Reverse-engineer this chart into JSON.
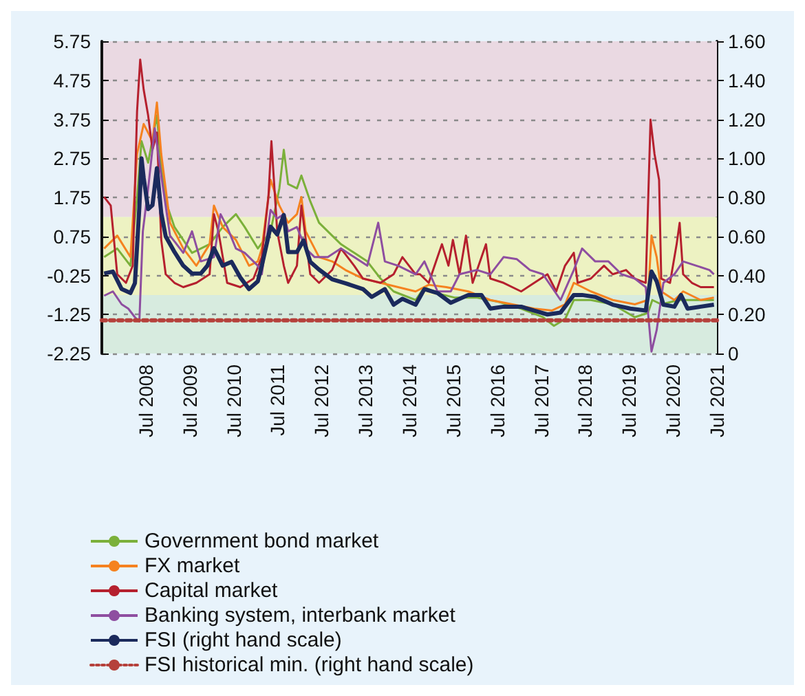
{
  "chart_data": {
    "type": "line",
    "legend": "bottom",
    "grid": "y",
    "marker": "none",
    "xlim": [
      "2007-07-01",
      "2021-07-01"
    ],
    "xticks": [
      {
        "value": "2008-01-01",
        "label": null
      },
      {
        "value": "2008-07-01",
        "label": "Jul 2008"
      },
      {
        "value": "2009-01-01",
        "label": null
      },
      {
        "value": "2009-07-01",
        "label": "Jul 2009"
      },
      {
        "value": "2010-01-01",
        "label": null
      },
      {
        "value": "2010-07-01",
        "label": "Jul 2010"
      },
      {
        "value": "2011-01-01",
        "label": null
      },
      {
        "value": "2011-07-01",
        "label": "Jul 2011"
      },
      {
        "value": "2012-01-01",
        "label": null
      },
      {
        "value": "2012-07-01",
        "label": "Jul 2012"
      },
      {
        "value": "2013-01-01",
        "label": null
      },
      {
        "value": "2013-07-01",
        "label": "Jul 2013"
      },
      {
        "value": "2014-01-01",
        "label": null
      },
      {
        "value": "2014-07-01",
        "label": "Jul 2014"
      },
      {
        "value": "2015-01-01",
        "label": null
      },
      {
        "value": "2015-07-01",
        "label": "Jul 2015"
      },
      {
        "value": "2016-01-01",
        "label": null
      },
      {
        "value": "2016-07-01",
        "label": "Jul 2016"
      },
      {
        "value": "2017-01-01",
        "label": null
      },
      {
        "value": "2017-07-01",
        "label": "Jul 2017"
      },
      {
        "value": "2018-01-01",
        "label": null
      },
      {
        "value": "2018-07-01",
        "label": "Jul 2018"
      },
      {
        "value": "2019-01-01",
        "label": null
      },
      {
        "value": "2019-07-01",
        "label": "Jul 2019"
      },
      {
        "value": "2020-01-01",
        "label": null
      },
      {
        "value": "2020-07-01",
        "label": "Jul 2020"
      },
      {
        "value": "2021-01-01",
        "label": null
      },
      {
        "value": "2021-07-01",
        "label": "Jul 2021"
      }
    ],
    "ylim": [
      -2.25,
      5.75
    ],
    "yticks": [
      -2.25,
      -1.25,
      -0.25,
      0.75,
      1.75,
      2.75,
      3.75,
      4.75,
      5.75
    ],
    "y2lim": [
      0,
      1.6
    ],
    "y2ticks": [
      0,
      {
        "value": 0.2,
        "label": "0.20"
      },
      {
        "value": 0.4,
        "label": "0.40"
      },
      {
        "value": 0.6,
        "label": "0.60"
      },
      {
        "value": 0.8,
        "label": "0.80"
      },
      {
        "value": 1,
        "label": "1.00"
      },
      {
        "value": 1.2,
        "label": "1.20"
      },
      {
        "value": 1.4,
        "label": "1.40"
      },
      {
        "value": 1.6,
        "label": "1.60"
      }
    ],
    "bands": [
      {
        "axis": "y",
        "from": 1.25,
        "to": 5.75,
        "color": "#ead9e2"
      },
      {
        "axis": "y",
        "from": -0.75,
        "to": 1.25,
        "color": "#edf2c2"
      },
      {
        "axis": "y",
        "from": -2.25,
        "to": -0.75,
        "color": "#d7ebdf"
      }
    ],
    "ref_lines": [
      {
        "axis": "y2",
        "value": 0.17,
        "label": "FSI historical min. (right hand scale)",
        "color": "#b5403a",
        "line_style": "dotted"
      }
    ],
    "series": [
      {
        "name": "Government bond market",
        "color": "#7bb03a",
        "x": [
          "2007-07-20",
          "2007-11-06",
          "2008-02-24",
          "2008-04-19",
          "2008-05-26",
          "2008-07-20",
          "2008-10-01",
          "2008-11-06",
          "2008-12-13",
          "2009-02-24",
          "2009-05-08",
          "2009-07-20",
          "2009-12-13",
          "2010-04-01",
          "2010-07-20",
          "2010-10-01",
          "2011-01-18",
          "2011-05-04",
          "2011-07-16",
          "2011-08-22",
          "2011-09-27",
          "2011-12-09",
          "2012-01-15",
          "2012-03-29",
          "2012-06-10",
          "2012-09-27",
          "2012-12-09",
          "2013-03-29",
          "2013-07-16",
          "2013-11-03",
          "2014-02-20",
          "2014-08-22",
          "2014-11-03",
          "2015-02-20",
          "2015-07-16",
          "2016-01-15",
          "2016-07-16",
          "2017-01-15",
          "2017-07-16",
          "2017-10-15",
          "2018-01-15",
          "2018-03-29",
          "2018-08-18",
          "2019-02-16",
          "2019-08-18",
          "2019-12-05",
          "2020-01-11",
          "2020-03-25",
          "2020-08-18",
          "2021-02-16",
          "2021-06-06"
        ],
        "values": [
          0.22,
          0.44,
          0.0,
          1.76,
          3.19,
          2.64,
          3.85,
          2.53,
          1.65,
          0.99,
          0.66,
          0.33,
          0.55,
          0.99,
          1.32,
          0.99,
          0.44,
          0.88,
          1.98,
          2.97,
          2.09,
          1.98,
          2.31,
          1.65,
          1.1,
          0.77,
          0.55,
          0.33,
          0.11,
          -0.33,
          -0.66,
          -0.88,
          -0.55,
          -0.71,
          -0.82,
          -0.82,
          -0.93,
          -1.1,
          -1.32,
          -1.54,
          -1.37,
          -0.88,
          -0.88,
          -0.99,
          -1.32,
          -1.21,
          -0.88,
          -0.99,
          -0.88,
          -0.88,
          -0.88
        ]
      },
      {
        "name": "FX market",
        "color": "#f5821f",
        "x": [
          "2007-07-20",
          "2007-11-06",
          "2008-02-24",
          "2008-04-19",
          "2008-06-13",
          "2008-08-25",
          "2008-10-01",
          "2008-11-06",
          "2009-01-18",
          "2009-05-08",
          "2009-08-25",
          "2009-12-13",
          "2010-01-18",
          "2010-04-01",
          "2010-07-20",
          "2010-11-06",
          "2011-01-18",
          "2011-02-20",
          "2011-05-04",
          "2011-07-16",
          "2011-09-27",
          "2011-12-09",
          "2012-01-15",
          "2012-02-20",
          "2012-06-10",
          "2012-09-27",
          "2013-01-15",
          "2013-06-10",
          "2013-11-03",
          "2014-03-29",
          "2014-08-22",
          "2014-12-09",
          "2015-05-04",
          "2015-11-03",
          "2016-05-04",
          "2016-11-03",
          "2017-05-04",
          "2017-09-27",
          "2018-01-15",
          "2018-03-29",
          "2018-08-18",
          "2019-02-16",
          "2019-08-18",
          "2019-12-05",
          "2020-01-04",
          "2020-02-16",
          "2020-03-25",
          "2020-07-12",
          "2020-09-23",
          "2021-02-16",
          "2021-06-06"
        ],
        "values": [
          0.44,
          0.77,
          0.22,
          2.86,
          3.63,
          3.19,
          4.18,
          2.86,
          1.1,
          0.44,
          0.0,
          0.55,
          1.54,
          0.99,
          0.66,
          0.0,
          0.11,
          0.44,
          2.2,
          1.54,
          1.1,
          1.32,
          1.76,
          0.88,
          0.22,
          0.11,
          -0.11,
          -0.33,
          -0.44,
          -0.55,
          -0.66,
          -0.49,
          -0.55,
          -0.66,
          -0.88,
          -0.99,
          -1.1,
          -1.15,
          -0.99,
          -0.44,
          -0.66,
          -0.88,
          -0.99,
          -0.88,
          0.77,
          0.22,
          -0.66,
          -0.88,
          -0.66,
          -0.88,
          -0.82
        ]
      },
      {
        "name": "Capital market",
        "color": "#b5202e",
        "x": [
          "2007-07-20",
          "2007-09-13",
          "2007-11-06",
          "2008-01-18",
          "2008-03-14",
          "2008-04-19",
          "2008-05-15",
          "2008-06-13",
          "2008-07-20",
          "2008-08-25",
          "2008-10-01",
          "2008-11-06",
          "2008-12-13",
          "2009-02-24",
          "2009-05-08",
          "2009-08-25",
          "2009-12-13",
          "2010-01-18",
          "2010-02-24",
          "2010-05-08",
          "2010-08-25",
          "2010-12-13",
          "2011-02-20",
          "2011-04-16",
          "2011-05-11",
          "2011-06-28",
          "2011-08-22",
          "2011-09-27",
          "2011-12-09",
          "2012-01-15",
          "2012-03-29",
          "2012-06-10",
          "2012-09-27",
          "2012-12-09",
          "2013-03-29",
          "2013-06-10",
          "2013-11-03",
          "2014-02-20",
          "2014-05-04",
          "2014-08-22",
          "2014-09-27",
          "2014-12-09",
          "2015-02-20",
          "2015-03-29",
          "2015-05-22",
          "2015-06-28",
          "2015-08-22",
          "2015-10-15",
          "2015-12-09",
          "2016-03-29",
          "2016-05-04",
          "2016-08-22",
          "2017-01-15",
          "2017-05-04",
          "2017-08-22",
          "2017-11-03",
          "2018-01-15",
          "2018-03-29",
          "2018-04-30",
          "2018-08-18",
          "2018-12-05",
          "2019-02-16",
          "2019-06-06",
          "2019-08-18",
          "2019-11-17",
          "2019-12-27",
          "2020-01-29",
          "2020-03-07",
          "2020-03-25",
          "2020-06-06",
          "2020-07-31",
          "2020-08-25",
          "2020-09-23",
          "2020-12-05",
          "2021-02-16",
          "2021-06-06"
        ],
        "values": [
          1.76,
          1.54,
          -0.22,
          -0.44,
          0.0,
          3.96,
          5.28,
          4.51,
          3.85,
          2.97,
          3.41,
          0.66,
          -0.22,
          -0.44,
          -0.55,
          -0.44,
          -0.22,
          1.32,
          0.88,
          -0.44,
          -0.55,
          -0.33,
          0.22,
          1.76,
          3.19,
          0.88,
          0.0,
          -0.44,
          0.0,
          1.54,
          -0.22,
          -0.44,
          -0.11,
          0.44,
          0.0,
          -0.33,
          -0.44,
          -0.22,
          0.22,
          -0.22,
          -0.22,
          -0.44,
          0.22,
          0.55,
          0.0,
          0.66,
          -0.22,
          0.77,
          -0.44,
          0.55,
          -0.33,
          -0.44,
          -0.66,
          -0.44,
          -0.22,
          -0.66,
          0.0,
          0.33,
          -0.44,
          -0.33,
          0.0,
          -0.22,
          -0.11,
          -0.33,
          -0.44,
          3.74,
          2.86,
          2.2,
          -0.33,
          -0.44,
          0.55,
          1.1,
          -0.22,
          -0.44,
          -0.55,
          -0.55
        ]
      },
      {
        "name": "Banking system, interbank market",
        "color": "#8e4ea0",
        "x": [
          "2007-07-20",
          "2007-10-01",
          "2007-12-13",
          "2008-02-06",
          "2008-04-01",
          "2008-05-08",
          "2008-06-06",
          "2008-07-20",
          "2008-09-13",
          "2008-11-06",
          "2009-01-18",
          "2009-05-08",
          "2009-07-20",
          "2009-10-01",
          "2010-01-18",
          "2010-03-14",
          "2010-05-08",
          "2010-07-20",
          "2010-10-01",
          "2011-01-18",
          "2011-02-20",
          "2011-05-04",
          "2011-06-28",
          "2011-08-22",
          "2011-09-27",
          "2011-12-09",
          "2012-02-20",
          "2012-05-04",
          "2012-08-22",
          "2012-12-09",
          "2013-03-29",
          "2013-07-16",
          "2013-10-15",
          "2013-12-09",
          "2014-03-29",
          "2014-08-22",
          "2014-11-03",
          "2015-02-20",
          "2015-06-10",
          "2015-08-22",
          "2016-01-15",
          "2016-05-04",
          "2016-08-22",
          "2016-12-09",
          "2017-03-29",
          "2017-07-16",
          "2017-09-27",
          "2017-12-09",
          "2018-03-29",
          "2018-06-06",
          "2018-09-23",
          "2019-01-11",
          "2019-04-30",
          "2019-08-18",
          "2019-11-17",
          "2019-12-16",
          "2020-01-04",
          "2020-02-16",
          "2020-04-12",
          "2020-07-12",
          "2020-09-23",
          "2021-01-11",
          "2021-04-30",
          "2021-06-06"
        ],
        "values": [
          -0.77,
          -0.66,
          -0.99,
          -1.1,
          -1.32,
          -1.43,
          0.88,
          1.98,
          3.52,
          2.31,
          0.77,
          0.33,
          0.88,
          0.11,
          0.22,
          1.32,
          0.99,
          0.44,
          0.33,
          0.0,
          -0.22,
          1.43,
          1.21,
          1.32,
          0.88,
          0.99,
          0.44,
          0.22,
          0.22,
          0.44,
          0.22,
          0.0,
          1.1,
          0.11,
          0.0,
          -0.22,
          0.11,
          -0.66,
          -0.66,
          -0.22,
          -0.11,
          -0.22,
          0.22,
          0.17,
          -0.11,
          -0.22,
          -0.55,
          -0.88,
          -0.11,
          0.44,
          0.11,
          0.11,
          -0.22,
          -0.33,
          -0.55,
          -1.54,
          -2.2,
          -1.65,
          -0.44,
          -0.22,
          0.11,
          0.0,
          -0.11,
          -0.22
        ]
      },
      {
        "name": "FSI (right hand scale)",
        "color": "#1b2a5c",
        "axis": "y2",
        "x": [
          "2007-07-20",
          "2007-10-01",
          "2007-12-13",
          "2008-02-24",
          "2008-04-01",
          "2008-05-08",
          "2008-05-26",
          "2008-06-13",
          "2008-07-20",
          "2008-08-25",
          "2008-10-01",
          "2008-11-06",
          "2008-12-13",
          "2009-02-24",
          "2009-05-08",
          "2009-07-20",
          "2009-10-01",
          "2009-11-25",
          "2010-01-18",
          "2010-04-01",
          "2010-06-13",
          "2010-08-25",
          "2010-11-06",
          "2011-01-18",
          "2011-02-20",
          "2011-05-04",
          "2011-06-28",
          "2011-08-22",
          "2011-09-27",
          "2011-12-09",
          "2012-02-02",
          "2012-03-29",
          "2012-06-10",
          "2012-09-27",
          "2013-01-15",
          "2013-06-10",
          "2013-08-22",
          "2013-12-09",
          "2014-02-20",
          "2014-05-04",
          "2014-08-22",
          "2014-11-03",
          "2015-02-20",
          "2015-06-10",
          "2015-11-03",
          "2016-02-20",
          "2016-05-04",
          "2016-08-22",
          "2017-01-15",
          "2017-05-04",
          "2017-08-22",
          "2017-12-09",
          "2018-03-29",
          "2018-06-06",
          "2018-09-23",
          "2019-02-16",
          "2019-07-12",
          "2019-11-17",
          "2020-01-04",
          "2020-02-16",
          "2020-04-12",
          "2020-07-12",
          "2020-09-05",
          "2020-10-30",
          "2021-02-16",
          "2021-06-06"
        ],
        "values": [
          0.41,
          0.42,
          0.33,
          0.31,
          0.36,
          0.75,
          1.0,
          0.9,
          0.74,
          0.76,
          0.95,
          0.72,
          0.6,
          0.52,
          0.45,
          0.41,
          0.41,
          0.45,
          0.54,
          0.45,
          0.47,
          0.39,
          0.33,
          0.37,
          0.45,
          0.65,
          0.61,
          0.71,
          0.52,
          0.52,
          0.58,
          0.47,
          0.43,
          0.38,
          0.36,
          0.33,
          0.29,
          0.33,
          0.25,
          0.28,
          0.25,
          0.33,
          0.31,
          0.26,
          0.3,
          0.3,
          0.23,
          0.24,
          0.24,
          0.22,
          0.2,
          0.21,
          0.3,
          0.3,
          0.29,
          0.25,
          0.23,
          0.22,
          0.42,
          0.37,
          0.25,
          0.24,
          0.3,
          0.23,
          0.24,
          0.25
        ]
      }
    ]
  }
}
